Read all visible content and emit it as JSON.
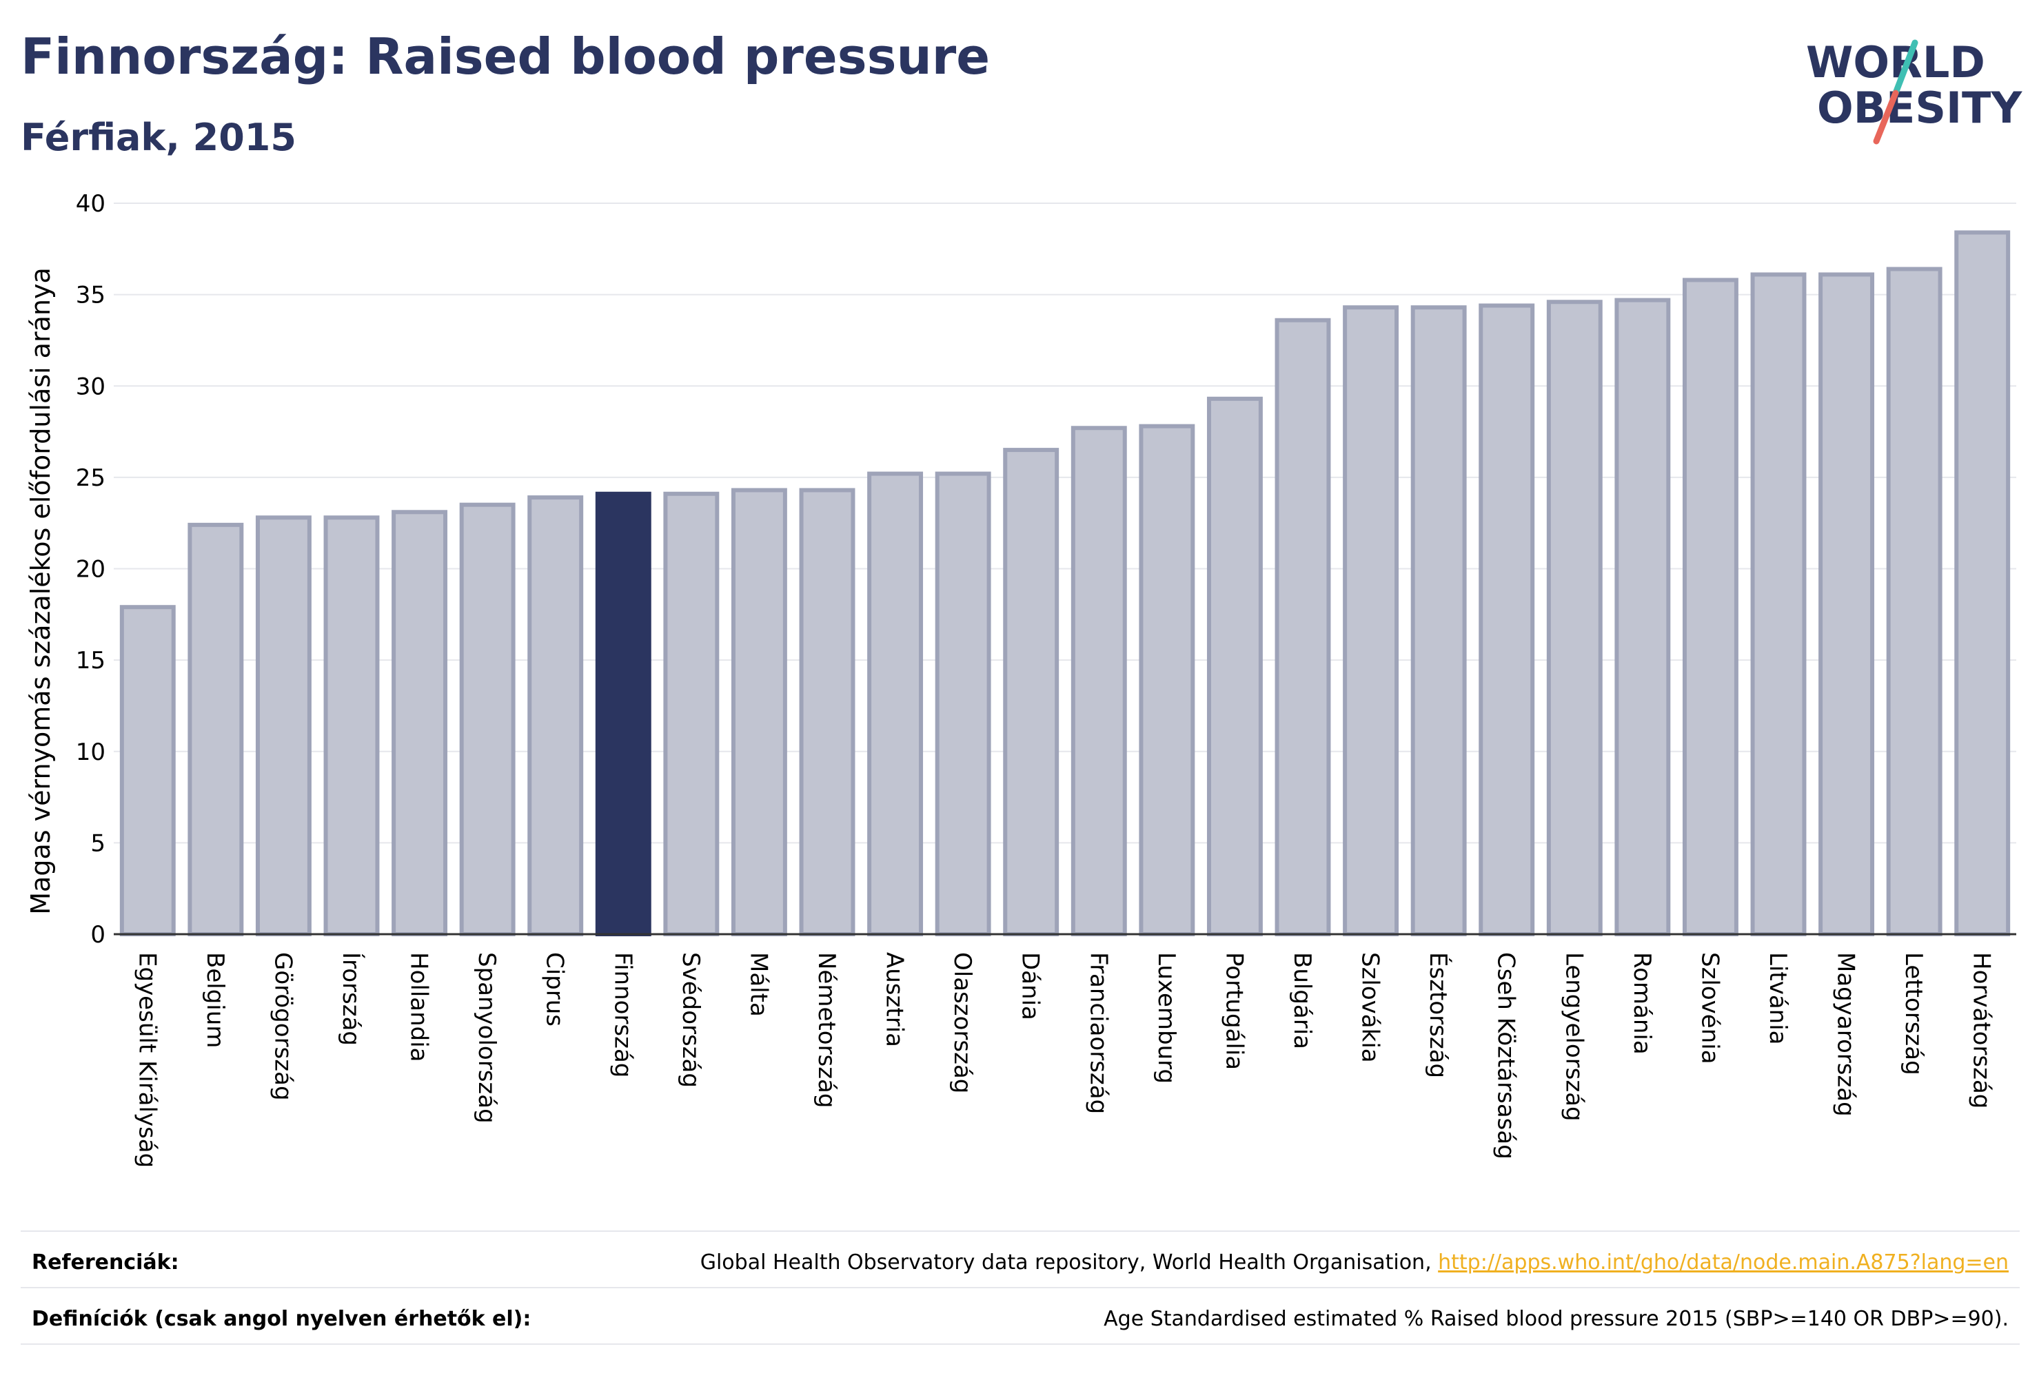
{
  "header": {
    "title": "Finnország: Raised blood pressure",
    "subtitle": "Férfiak, 2015"
  },
  "logo": {
    "line1": "WORLD",
    "line2": "OBESITY",
    "accent_teal": "#3fbfb3",
    "accent_red": "#e8665a",
    "text_color": "#2b3560"
  },
  "colors": {
    "bar_fill": "#c1c4d1",
    "bar_stroke": "#9ea3b8",
    "highlight_fill": "#2b3560",
    "grid": "#e6e7ec",
    "axis": "#333333"
  },
  "chart_data": {
    "type": "bar",
    "ylabel": "Magas vérnyomás százalékos előfordulási aránya",
    "ylim": [
      0,
      40
    ],
    "yticks": [
      0,
      5,
      10,
      15,
      20,
      25,
      30,
      35,
      40
    ],
    "grid": true,
    "highlight": "Finnország",
    "categories": [
      "Egyesült Királyság",
      "Belgium",
      "Görögország",
      "Írország",
      "Hollandia",
      "Spanyolország",
      "Ciprus",
      "Finnország",
      "Svédország",
      "Málta",
      "Németország",
      "Ausztria",
      "Olaszország",
      "Dánia",
      "Franciaország",
      "Luxemburg",
      "Portugália",
      "Bulgária",
      "Szlovákia",
      "Észtország",
      "Cseh Köztársaság",
      "Lengyelország",
      "Románia",
      "Szlovénia",
      "Litvánia",
      "Magyarország",
      "Lettország",
      "Horvátország"
    ],
    "values": [
      17.9,
      22.4,
      22.8,
      22.8,
      23.1,
      23.5,
      23.9,
      24.1,
      24.1,
      24.3,
      24.3,
      25.2,
      25.2,
      26.5,
      27.7,
      27.8,
      29.3,
      33.6,
      34.3,
      34.3,
      34.4,
      34.6,
      34.7,
      35.8,
      36.1,
      36.1,
      36.4,
      38.4
    ]
  },
  "footer": {
    "references_label": "Referenciák:",
    "references_text": "Global Health Observatory data repository, World Health Organisation, ",
    "references_link": "http://apps.who.int/gho/data/node.main.A875?lang=en",
    "definitions_label": "Definíciók (csak angol nyelven érhetők el):",
    "definitions_text": "Age Standardised estimated % Raised blood pressure 2015 (SBP>=140 OR DBP>=90)."
  }
}
